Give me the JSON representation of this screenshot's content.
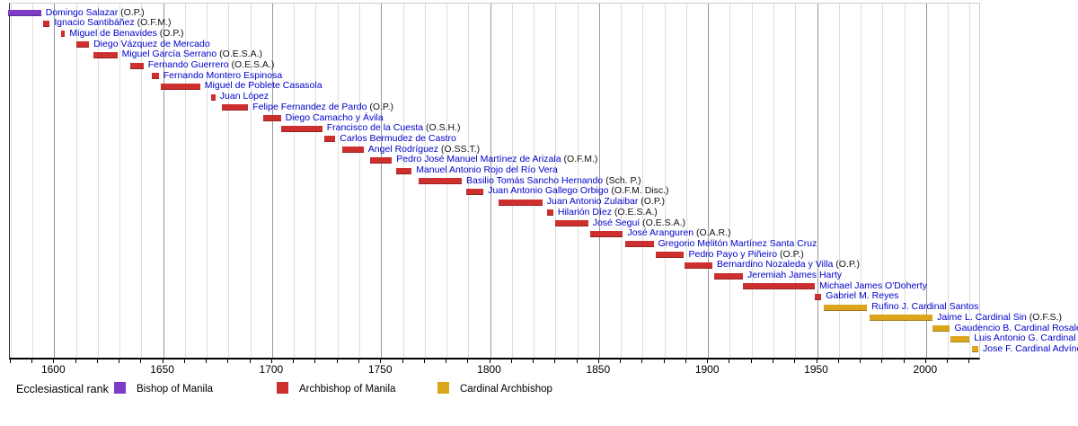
{
  "chart_data": {
    "type": "timeline",
    "legend_title": "Ecclesiastical rank",
    "x_axis": {
      "min": 1579.7,
      "max": 2024.4,
      "minor_tick_step": 10,
      "minor_tick_start": 1580,
      "minor_tick_end": 2020,
      "major_ticks": [
        1600,
        1650,
        1700,
        1750,
        1800,
        1850,
        1900,
        1950,
        2000
      ],
      "grid": true
    },
    "legend": [
      {
        "rank": "bishop",
        "label": "Bishop of Manila",
        "color": "#7d3bc7"
      },
      {
        "rank": "archbishop",
        "label": "Archbishop of Manila",
        "color": "#cd2f2f"
      },
      {
        "rank": "cardinal",
        "label": "Cardinal Archbishop",
        "color": "#dca61c"
      }
    ],
    "name_link_color": "#0000cc",
    "bars": [
      {
        "name": "Domingo Salazar",
        "order": "(O.P.)",
        "rank": "bishop",
        "start": 1579,
        "end": 1594
      },
      {
        "name": "Ignacio Santibáñez",
        "order": "(O.F.M.)",
        "rank": "archbishop",
        "start": 1595,
        "end": 1598
      },
      {
        "name": "Miguel de Benavides",
        "order": "(O.P.)",
        "rank": "archbishop",
        "start": 1603,
        "end": 1605
      },
      {
        "name": "Diego Vázquez de Mercado",
        "order": "",
        "rank": "archbishop",
        "start": 1610,
        "end": 1616
      },
      {
        "name": "Miguel García Serrano",
        "order": "(O.E.S.A.)",
        "rank": "archbishop",
        "start": 1618,
        "end": 1629
      },
      {
        "name": "Fernando Guerrero",
        "order": "(O.E.S.A.)",
        "rank": "archbishop",
        "start": 1635,
        "end": 1641
      },
      {
        "name": "Fernando Montero Espinosa",
        "order": "",
        "rank": "archbishop",
        "start": 1645,
        "end": 1648
      },
      {
        "name": "Miguel de Poblete Casasola",
        "order": "",
        "rank": "archbishop",
        "start": 1649,
        "end": 1667
      },
      {
        "name": "Juan López",
        "order": "",
        "rank": "archbishop",
        "start": 1672,
        "end": 1674
      },
      {
        "name": "Felipe Fernandez de Pardo",
        "order": "(O.P.)",
        "rank": "archbishop",
        "start": 1677,
        "end": 1689
      },
      {
        "name": "Diego Camacho y Ávila",
        "order": "",
        "rank": "archbishop",
        "start": 1696,
        "end": 1704
      },
      {
        "name": "Francisco de la Cuesta",
        "order": "(O.S.H.)",
        "rank": "archbishop",
        "start": 1704,
        "end": 1723
      },
      {
        "name": "Carlos Bermudez de Castro",
        "order": "",
        "rank": "archbishop",
        "start": 1724,
        "end": 1729
      },
      {
        "name": "Angel Rodríguez",
        "order": "(O.SS.T.)",
        "rank": "archbishop",
        "start": 1732,
        "end": 1742
      },
      {
        "name": "Pedro José Manuel Martínez de Arizala",
        "order": "(O.F.M.)",
        "rank": "archbishop",
        "start": 1745,
        "end": 1755
      },
      {
        "name": "Manuel Antonio Rojo del Río Vera",
        "order": "",
        "rank": "archbishop",
        "start": 1757,
        "end": 1764
      },
      {
        "name": "Basilio Tomás Sancho Hernando",
        "order": "(Sch. P.)",
        "rank": "archbishop",
        "start": 1767,
        "end": 1787
      },
      {
        "name": "Juan Antonio Gallego Orbigo",
        "order": "(O.F.M. Disc.)",
        "rank": "archbishop",
        "start": 1789,
        "end": 1797
      },
      {
        "name": "Juan Antonio Zulaibar",
        "order": "(O.P.)",
        "rank": "archbishop",
        "start": 1804,
        "end": 1824
      },
      {
        "name": "Hilarión Díez",
        "order": "(O.E.S.A.)",
        "rank": "archbishop",
        "start": 1826,
        "end": 1829
      },
      {
        "name": "José Seguí",
        "order": "(O.E.S.A.)",
        "rank": "archbishop",
        "start": 1830,
        "end": 1845
      },
      {
        "name": "José Aranguren",
        "order": "(O.A.R.)",
        "rank": "archbishop",
        "start": 1846,
        "end": 1861
      },
      {
        "name": "Gregorio Melitón Martínez Santa Cruz",
        "order": "",
        "rank": "archbishop",
        "start": 1862,
        "end": 1875
      },
      {
        "name": "Pedro Payo y Piñeiro",
        "order": "(O.P.)",
        "rank": "archbishop",
        "start": 1876,
        "end": 1889
      },
      {
        "name": "Bernardino Nozaleda y Villa",
        "order": "(O.P.)",
        "rank": "archbishop",
        "start": 1889,
        "end": 1902
      },
      {
        "name": "Jeremiah James Harty",
        "order": "",
        "rank": "archbishop",
        "start": 1903,
        "end": 1916
      },
      {
        "name": "Michael James O'Doherty",
        "order": "",
        "rank": "archbishop",
        "start": 1916,
        "end": 1949
      },
      {
        "name": "Gabriel M. Reyes",
        "order": "",
        "rank": "archbishop",
        "start": 1949,
        "end": 1952
      },
      {
        "name": "Rufino J. Cardinal Santos",
        "order": "",
        "rank": "cardinal",
        "start": 1953,
        "end": 1973
      },
      {
        "name": "Jaime L. Cardinal Sin",
        "order": "(O.F.S.)",
        "rank": "cardinal",
        "start": 1974,
        "end": 2003
      },
      {
        "name": "Gaudencio B. Cardinal Rosales",
        "order": "",
        "rank": "cardinal",
        "start": 2003,
        "end": 2011
      },
      {
        "name": "Luis Antonio G. Cardinal Tagle",
        "order": "",
        "rank": "cardinal",
        "start": 2011,
        "end": 2020
      },
      {
        "name": "Jose F. Cardinal Advíncula",
        "order": "",
        "rank": "cardinal",
        "start": 2021,
        "end": 2024
      }
    ]
  }
}
